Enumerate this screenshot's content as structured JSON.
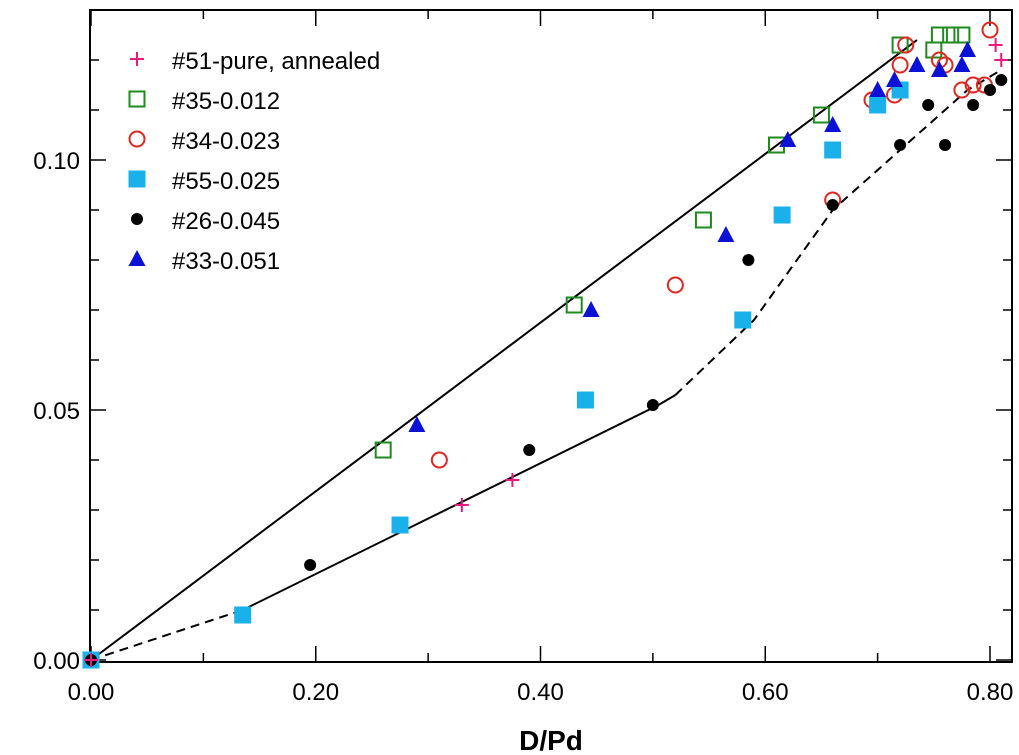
{
  "chart_data": {
    "type": "scatter",
    "title": "",
    "xlabel": "D/Pd",
    "ylabel": "",
    "xlim": [
      0.0,
      0.82
    ],
    "ylim": [
      0.0,
      0.126
    ],
    "x_ticks": [
      {
        "value": 0.0,
        "label": "0.00"
      },
      {
        "value": 0.2,
        "label": "0.20"
      },
      {
        "value": 0.4,
        "label": "0.40"
      },
      {
        "value": 0.6,
        "label": "0.60"
      },
      {
        "value": 0.8,
        "label": "0.80"
      }
    ],
    "y_ticks": [
      {
        "value": 0.0,
        "label": "0.00"
      },
      {
        "value": 0.05,
        "label": "0.05"
      },
      {
        "value": 0.1,
        "label": "0.10"
      }
    ],
    "x_minor_step": 0.1,
    "y_minor_step": 0.01,
    "grid": false,
    "legend_position": "top-left",
    "series": [
      {
        "name": "#51-pure, annealed",
        "marker": "plus",
        "color": "#e8197f",
        "x": [
          0.0,
          0.33,
          0.375,
          0.805,
          0.81
        ],
        "y": [
          0.0,
          0.031,
          0.036,
          0.123,
          0.12
        ]
      },
      {
        "name": "#35-0.012",
        "marker": "square-open",
        "color": "#1f8a1f",
        "x": [
          0.0,
          0.26,
          0.43,
          0.545,
          0.61,
          0.65,
          0.72,
          0.75,
          0.755,
          0.765,
          0.775
        ],
        "y": [
          0.0,
          0.042,
          0.071,
          0.088,
          0.103,
          0.109,
          0.123,
          0.122,
          0.125,
          0.125,
          0.125
        ]
      },
      {
        "name": "#34-0.023",
        "marker": "circle-open",
        "color": "#e0261f",
        "x": [
          0.0,
          0.31,
          0.52,
          0.66,
          0.695,
          0.715,
          0.72,
          0.725,
          0.755,
          0.76,
          0.775,
          0.785,
          0.795,
          0.8
        ],
        "y": [
          0.0,
          0.04,
          0.075,
          0.092,
          0.112,
          0.113,
          0.119,
          0.123,
          0.12,
          0.119,
          0.114,
          0.115,
          0.115,
          0.126
        ]
      },
      {
        "name": "#55-0.025",
        "marker": "square-filled",
        "color": "#1ab0ea",
        "x": [
          0.0,
          0.135,
          0.275,
          0.44,
          0.58,
          0.615,
          0.66,
          0.7,
          0.72
        ],
        "y": [
          0.0,
          0.009,
          0.027,
          0.052,
          0.068,
          0.089,
          0.102,
          0.111,
          0.114
        ]
      },
      {
        "name": "#26-0.045",
        "marker": "circle-filled",
        "color": "#000000",
        "x": [
          0.0,
          0.195,
          0.39,
          0.5,
          0.585,
          0.66,
          0.72,
          0.745,
          0.76,
          0.785,
          0.8,
          0.81
        ],
        "y": [
          0.0,
          0.019,
          0.042,
          0.051,
          0.08,
          0.091,
          0.103,
          0.111,
          0.103,
          0.111,
          0.114,
          0.116
        ]
      },
      {
        "name": "#33-0.051",
        "marker": "triangle-filled",
        "color": "#0b12d6",
        "x": [
          0.29,
          0.445,
          0.565,
          0.62,
          0.66,
          0.7,
          0.715,
          0.735,
          0.755,
          0.775,
          0.78
        ],
        "y": [
          0.047,
          0.07,
          0.085,
          0.104,
          0.107,
          0.114,
          0.116,
          0.119,
          0.118,
          0.119,
          0.122
        ]
      }
    ],
    "reference_lines": [
      {
        "style": "solid",
        "x": [
          0.0,
          0.735
        ],
        "y": [
          0.0,
          0.124
        ]
      },
      {
        "style": "dashed",
        "x": [
          0.0,
          0.135
        ],
        "y": [
          0.0,
          0.01
        ]
      },
      {
        "style": "solid",
        "x": [
          0.135,
          0.505,
          0.52
        ],
        "y": [
          0.01,
          0.051,
          0.053
        ]
      },
      {
        "style": "dashed",
        "x": [
          0.52,
          0.59,
          0.66,
          0.72,
          0.78,
          0.81
        ],
        "y": [
          0.053,
          0.068,
          0.09,
          0.102,
          0.114,
          0.118
        ]
      }
    ]
  }
}
